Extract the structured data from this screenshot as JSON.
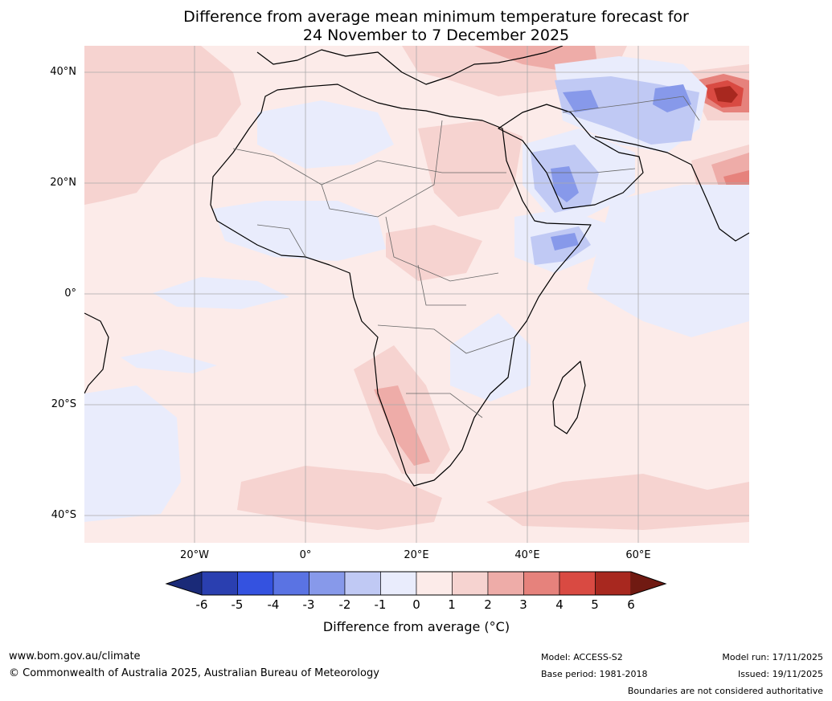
{
  "title": {
    "line1": "Difference from average mean minimum temperature forecast for",
    "line2": "24 November to 7 December 2025"
  },
  "map": {
    "lat_labels": [
      "40°N",
      "20°N",
      "0°",
      "20°S",
      "40°S"
    ],
    "lon_labels": [
      "20°W",
      "0°",
      "20°E",
      "40°E",
      "60°E"
    ],
    "region": "Africa and Middle East"
  },
  "colorbar": {
    "ticks": [
      "-6",
      "-5",
      "-4",
      "-3",
      "-2",
      "-1",
      "0",
      "1",
      "2",
      "3",
      "4",
      "5",
      "6"
    ],
    "title": "Difference from average (°C)",
    "colors": [
      "#1a2a78",
      "#2a3fb0",
      "#3452e0",
      "#5a73e3",
      "#8799ea",
      "#c0c9f4",
      "#e9ecfc",
      "#fcebe9",
      "#f6d3d0",
      "#eeaca8",
      "#e6827c",
      "#d94a42",
      "#a8281f",
      "#701a12"
    ]
  },
  "footer": {
    "url": "www.bom.gov.au/climate",
    "copyright": "© Commonwealth of Australia 2025, Australian Bureau of Meteorology",
    "model": "Model: ACCESS-S2",
    "base_period": "Base period: 1981-2018",
    "model_run": "Model run: 17/11/2025",
    "issued": "Issued: 19/11/2025",
    "disclaimer": "Boundaries are not considered authoritative"
  }
}
